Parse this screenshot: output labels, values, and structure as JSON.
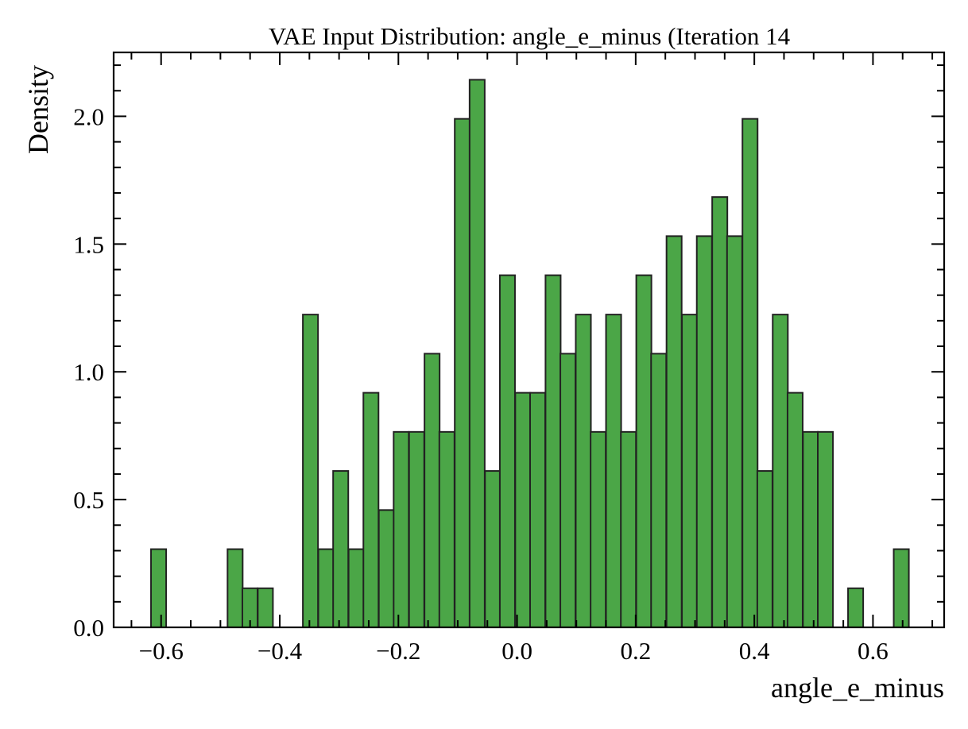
{
  "chart_data": {
    "type": "bar",
    "title": "VAE Input Distribution: angle_e_minus (Iteration 14",
    "xlabel": "angle_e_minus",
    "ylabel": "Density",
    "xlim": [
      -0.68,
      0.72
    ],
    "ylim": [
      0.0,
      2.25
    ],
    "x_ticks": [
      -0.6,
      -0.4,
      -0.2,
      0.0,
      0.2,
      0.4,
      0.6
    ],
    "x_tick_labels": [
      "−0.6",
      "−0.4",
      "−0.2",
      "0.0",
      "0.2",
      "0.4",
      "0.6"
    ],
    "y_ticks": [
      0.0,
      0.5,
      1.0,
      1.5,
      2.0
    ],
    "y_tick_labels": [
      "0.0",
      "0.5",
      "1.0",
      "1.5",
      "2.0"
    ],
    "bin_width": 0.0255,
    "bins": [
      {
        "start": -0.617,
        "value": 0.306
      },
      {
        "start": -0.488,
        "value": 0.306
      },
      {
        "start": -0.463,
        "value": 0.153
      },
      {
        "start": -0.437,
        "value": 0.153
      },
      {
        "start": -0.361,
        "value": 1.224
      },
      {
        "start": -0.335,
        "value": 0.306
      },
      {
        "start": -0.31,
        "value": 0.612
      },
      {
        "start": -0.284,
        "value": 0.306
      },
      {
        "start": -0.259,
        "value": 0.918
      },
      {
        "start": -0.233,
        "value": 0.459
      },
      {
        "start": -0.208,
        "value": 0.765
      },
      {
        "start": -0.182,
        "value": 0.765
      },
      {
        "start": -0.156,
        "value": 1.071
      },
      {
        "start": -0.131,
        "value": 0.765
      },
      {
        "start": -0.105,
        "value": 1.99
      },
      {
        "start": -0.08,
        "value": 2.143
      },
      {
        "start": -0.054,
        "value": 0.612
      },
      {
        "start": -0.029,
        "value": 1.378
      },
      {
        "start": -0.003,
        "value": 0.918
      },
      {
        "start": 0.022,
        "value": 0.918
      },
      {
        "start": 0.048,
        "value": 1.378
      },
      {
        "start": 0.073,
        "value": 1.071
      },
      {
        "start": 0.099,
        "value": 1.224
      },
      {
        "start": 0.124,
        "value": 0.765
      },
      {
        "start": 0.15,
        "value": 1.224
      },
      {
        "start": 0.175,
        "value": 0.765
      },
      {
        "start": 0.201,
        "value": 1.378
      },
      {
        "start": 0.226,
        "value": 1.071
      },
      {
        "start": 0.252,
        "value": 1.531
      },
      {
        "start": 0.278,
        "value": 1.224
      },
      {
        "start": 0.303,
        "value": 1.531
      },
      {
        "start": 0.329,
        "value": 1.684
      },
      {
        "start": 0.354,
        "value": 1.531
      },
      {
        "start": 0.38,
        "value": 1.99
      },
      {
        "start": 0.405,
        "value": 0.612
      },
      {
        "start": 0.431,
        "value": 1.224
      },
      {
        "start": 0.456,
        "value": 0.918
      },
      {
        "start": 0.482,
        "value": 0.765
      },
      {
        "start": 0.507,
        "value": 0.765
      },
      {
        "start": 0.558,
        "value": 0.153
      },
      {
        "start": 0.635,
        "value": 0.306
      }
    ],
    "colors": {
      "bar_fill": "#4ba647",
      "bar_edge": "#222222"
    },
    "grid": false,
    "legend": "none"
  }
}
